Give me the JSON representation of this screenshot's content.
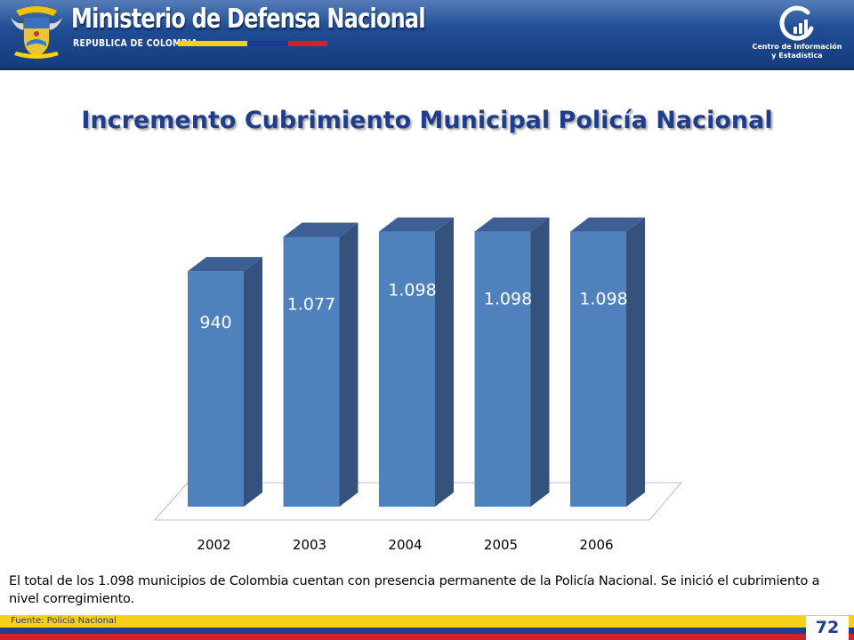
{
  "header": {
    "ministry": "Ministerio de Defensa Nacional",
    "republic": "REPUBLICA DE COLOMBIA",
    "center_line1": "Centro de Información",
    "center_line2": "y Estadística"
  },
  "chart_data": {
    "type": "bar",
    "title": "Incremento Cubrimiento Municipal Policía Nacional",
    "xlabel": "",
    "ylabel": "",
    "categories": [
      "2002",
      "2003",
      "2004",
      "2005",
      "2006"
    ],
    "values": [
      940,
      1077,
      1098,
      1098,
      1098
    ],
    "data_labels": [
      "940",
      "1.077",
      "1.098",
      "1.098",
      "1.098"
    ],
    "ylim": [
      0,
      1100
    ],
    "grid": false,
    "legend": "none",
    "style": "3d-column",
    "colors": {
      "bar_front": "#4f81bd",
      "bar_side": "#34527c",
      "bar_top": "#3d5f91"
    }
  },
  "note": "El total de los 1.098 municipios de Colombia cuentan con presencia permanente de la Policía Nacional. Se inició el cubrimiento a nivel corregimiento.",
  "footer": {
    "source": "Fuente: Policía Nacional",
    "page_number": "72"
  },
  "colors": {
    "header_blue": "#1f4c93",
    "title_blue": "#1f3d8a",
    "flag_yellow": "#f7d117",
    "flag_blue": "#1d3a9a",
    "flag_red": "#d51f2a"
  }
}
